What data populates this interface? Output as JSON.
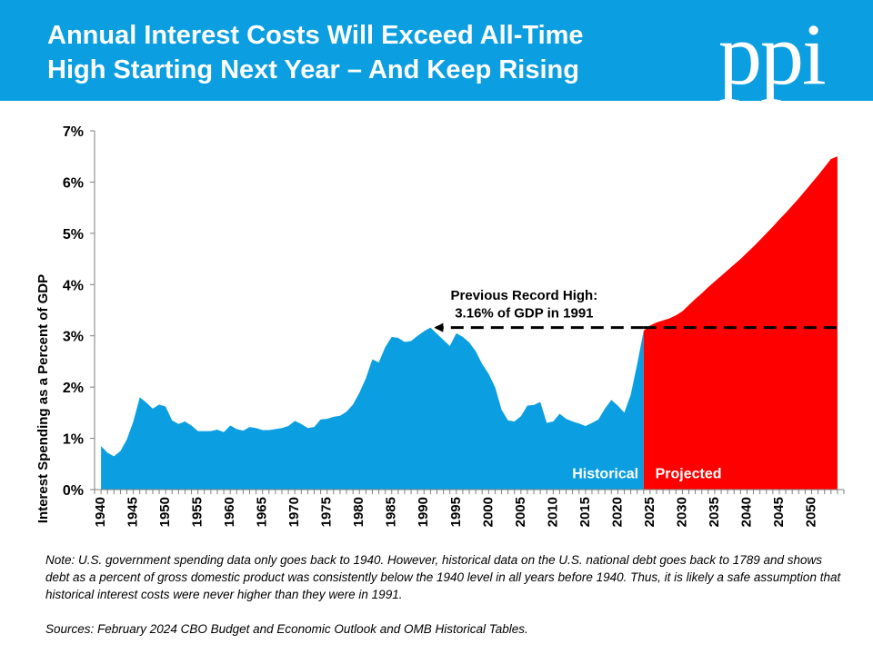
{
  "header": {
    "title_line1": "Annual Interest Costs Will Exceed All-Time",
    "title_line2": "High Starting Next Year – And Keep Rising",
    "logo": "ppi",
    "background": "#0b9ee0"
  },
  "chart_data": {
    "type": "area",
    "ylabel": "Interest Spending as a Percent of GDP",
    "y_ticks": [
      "0%",
      "1%",
      "2%",
      "3%",
      "4%",
      "5%",
      "6%",
      "7%"
    ],
    "ylim": [
      0,
      7
    ],
    "xlim": [
      1939,
      2055
    ],
    "x_ticks": [
      "1940",
      "1945",
      "1950",
      "1955",
      "1960",
      "1965",
      "1970",
      "1975",
      "1980",
      "1985",
      "1990",
      "1995",
      "2000",
      "2005",
      "2010",
      "2015",
      "2020",
      "2025",
      "2030",
      "2035",
      "2040",
      "2045",
      "2050"
    ],
    "series": [
      {
        "name": "Historical",
        "color": "#0b9ee0",
        "x": [
          1940,
          1941,
          1942,
          1943,
          1944,
          1945,
          1946,
          1947,
          1948,
          1949,
          1950,
          1951,
          1952,
          1953,
          1954,
          1955,
          1956,
          1957,
          1958,
          1959,
          1960,
          1961,
          1962,
          1963,
          1964,
          1965,
          1966,
          1967,
          1968,
          1969,
          1970,
          1971,
          1972,
          1973,
          1974,
          1975,
          1976,
          1977,
          1978,
          1979,
          1980,
          1981,
          1982,
          1983,
          1984,
          1985,
          1986,
          1987,
          1988,
          1989,
          1990,
          1991,
          1992,
          1993,
          1994,
          1995,
          1996,
          1997,
          1998,
          1999,
          2000,
          2001,
          2002,
          2003,
          2004,
          2005,
          2006,
          2007,
          2008,
          2009,
          2010,
          2011,
          2012,
          2013,
          2014,
          2015,
          2016,
          2017,
          2018,
          2019,
          2020,
          2021,
          2022,
          2023,
          2024
        ],
        "y": [
          0.85,
          0.72,
          0.65,
          0.75,
          0.98,
          1.33,
          1.8,
          1.7,
          1.58,
          1.66,
          1.62,
          1.35,
          1.28,
          1.33,
          1.25,
          1.14,
          1.14,
          1.14,
          1.17,
          1.12,
          1.25,
          1.18,
          1.15,
          1.22,
          1.2,
          1.16,
          1.16,
          1.18,
          1.2,
          1.24,
          1.34,
          1.28,
          1.2,
          1.22,
          1.37,
          1.38,
          1.42,
          1.44,
          1.52,
          1.66,
          1.89,
          2.17,
          2.54,
          2.48,
          2.78,
          2.98,
          2.96,
          2.88,
          2.9,
          3.0,
          3.09,
          3.16,
          3.04,
          2.92,
          2.8,
          3.05,
          2.98,
          2.87,
          2.7,
          2.45,
          2.26,
          2.0,
          1.56,
          1.35,
          1.33,
          1.43,
          1.64,
          1.65,
          1.71,
          1.3,
          1.33,
          1.48,
          1.38,
          1.33,
          1.29,
          1.24,
          1.3,
          1.37,
          1.58,
          1.75,
          1.64,
          1.5,
          1.85,
          2.45,
          3.1
        ]
      },
      {
        "name": "Projected",
        "color": "#ff0000",
        "x": [
          2024,
          2025,
          2026,
          2027,
          2028,
          2029,
          2030,
          2031,
          2032,
          2033,
          2034,
          2035,
          2036,
          2037,
          2038,
          2039,
          2040,
          2041,
          2042,
          2043,
          2044,
          2045,
          2046,
          2047,
          2048,
          2049,
          2050,
          2051,
          2052,
          2053,
          2054
        ],
        "y": [
          3.1,
          3.2,
          3.26,
          3.3,
          3.34,
          3.4,
          3.48,
          3.6,
          3.72,
          3.83,
          3.95,
          4.06,
          4.17,
          4.28,
          4.39,
          4.5,
          4.62,
          4.74,
          4.87,
          5.0,
          5.13,
          5.27,
          5.4,
          5.54,
          5.68,
          5.83,
          5.98,
          6.13,
          6.29,
          6.45,
          6.5
        ]
      }
    ],
    "record_line": {
      "value": 3.16,
      "from_year": 1991,
      "to_year": 2054
    },
    "annotation_line1": "Previous Record High:",
    "annotation_line2": "3.16% of GDP in 1991",
    "label_historical": "Historical",
    "label_projected": "Projected",
    "grid": false
  },
  "notes": {
    "note": "Note: U.S. government spending data only goes back to 1940. However,  historical data on the U.S. national debt goes back to 1789 and shows debt as a percent of gross domestic product was consistently below the 1940 level in all years before 1940. Thus, it is likely a safe assumption that historical interest costs were  never higher than they were  in 1991.",
    "sources": "Sources: February 2024 CBO Budget and Economic Outlook and OMB Historical Tables."
  }
}
